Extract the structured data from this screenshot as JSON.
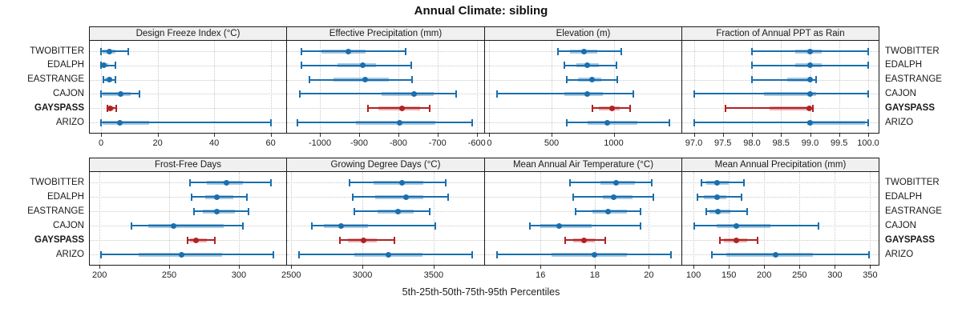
{
  "title": "Annual Climate: sibling",
  "caption": "5th-25th-50th-75th-95th Percentiles",
  "sites": [
    "TWOBITTER",
    "EDALPH",
    "EASTRANGE",
    "CAJON",
    "GAYSPASS",
    "ARIZO"
  ],
  "highlight_site": "GAYSPASS",
  "colors": {
    "series": "#1a6fae",
    "series_band": "rgba(26,111,174,0.38)",
    "highlight": "#b22222",
    "highlight_band": "rgba(178,34,34,0.35)",
    "header_bg": "#f0f0f0",
    "border": "#1a1a1a",
    "grid": "#c9c9c9",
    "text": "#1a1a1a"
  },
  "chart_data": {
    "type": "dot-whisker",
    "note": "Each row shows 5th-25th-50th-75th-95th percentiles: thin line with end caps = 5th-95th, thick translucent band = 25th-75th, dot = median (50th).",
    "percentiles": [
      5,
      25,
      50,
      75,
      95
    ],
    "row_order": [
      "TWOBITTER",
      "EDALPH",
      "EASTRANGE",
      "CAJON",
      "GAYSPASS",
      "ARIZO"
    ],
    "panels": [
      {
        "title": "Design Freeze Index (°C)",
        "grid_pos": [
          0,
          0
        ],
        "xlim": [
          -4,
          65.5
        ],
        "tick_values": [
          0,
          20,
          40,
          60
        ],
        "tick_labels": [
          "0",
          "20",
          "40",
          "60"
        ],
        "values": {
          "TWOBITTER": [
            0,
            0.5,
            3,
            5,
            9.5
          ],
          "EDALPH": [
            0,
            0.2,
            1,
            2.5,
            5
          ],
          "EASTRANGE": [
            0.8,
            1.5,
            2.8,
            4,
            5.2
          ],
          "CAJON": [
            0,
            0.5,
            7,
            10.5,
            13.5
          ],
          "GAYSPASS": [
            2.2,
            2.6,
            3.3,
            4.4,
            5.3
          ],
          "ARIZO": [
            0,
            0.5,
            6.7,
            17,
            60
          ]
        }
      },
      {
        "title": "Effective Precipitation (mm)",
        "grid_pos": [
          0,
          1
        ],
        "xlim": [
          -1084,
          -581
        ],
        "tick_values": [
          -1000,
          -900,
          -800,
          -700,
          -600
        ],
        "tick_labels": [
          "-1000",
          "-900",
          "-800",
          "-700",
          "-600"
        ],
        "values": {
          "TWOBITTER": [
            -1047,
            -996,
            -927,
            -884,
            -782
          ],
          "EDALPH": [
            -1047,
            -955,
            -890,
            -857,
            -768
          ],
          "EASTRANGE": [
            -1027,
            -965,
            -884,
            -825,
            -765
          ],
          "CAJON": [
            -1051,
            -843,
            -761,
            -710,
            -652
          ],
          "GAYSPASS": [
            -877,
            -850,
            -790,
            -745,
            -720
          ],
          "ARIZO": [
            -1057,
            -908,
            -796,
            -706,
            -612
          ]
        }
      },
      {
        "title": "Elevation (m)",
        "grid_pos": [
          0,
          2
        ],
        "xlim": [
          -35,
          1545
        ],
        "tick_values": [
          0,
          500,
          1000
        ],
        "tick_labels": [
          "0",
          "500",
          "1000"
        ],
        "values": {
          "TWOBITTER": [
            550,
            650,
            760,
            870,
            1060
          ],
          "EDALPH": [
            600,
            700,
            790,
            880,
            1020
          ],
          "EASTRANGE": [
            620,
            710,
            825,
            900,
            1030
          ],
          "CAJON": [
            60,
            600,
            790,
            910,
            1160
          ],
          "GAYSPASS": [
            830,
            880,
            985,
            1050,
            1130
          ],
          "ARIZO": [
            620,
            790,
            950,
            1190,
            1450
          ]
        }
      },
      {
        "title": "Fraction of Annual PPT as Rain",
        "grid_pos": [
          0,
          3
        ],
        "xlim": [
          96.8,
          100.18
        ],
        "tick_values": [
          97.0,
          97.5,
          98.0,
          98.5,
          99.0,
          99.5,
          100.0
        ],
        "tick_labels": [
          "97.0",
          "97.5",
          "98.0",
          "98.5",
          "99.0",
          "99.5",
          "100.0"
        ],
        "values": {
          "TWOBITTER": [
            98.0,
            98.75,
            99.0,
            99.2,
            100.0
          ],
          "EDALPH": [
            98.0,
            98.75,
            99.0,
            99.2,
            100.0
          ],
          "EASTRANGE": [
            98.0,
            98.6,
            99.0,
            99.02,
            99.1
          ],
          "CAJON": [
            97.0,
            98.2,
            99.0,
            99.1,
            100.0
          ],
          "GAYSPASS": [
            97.55,
            98.3,
            98.98,
            99.0,
            99.05
          ],
          "ARIZO": [
            97.0,
            98.95,
            99.0,
            99.95,
            100.0
          ]
        }
      },
      {
        "title": "Frost-Free Days",
        "grid_pos": [
          1,
          0
        ],
        "xlim": [
          193,
          334
        ],
        "tick_values": [
          200,
          250,
          300
        ],
        "tick_labels": [
          "200",
          "250",
          "300"
        ],
        "values": {
          "TWOBITTER": [
            265,
            277,
            291,
            303,
            323
          ],
          "EDALPH": [
            266,
            276,
            284,
            296,
            306
          ],
          "EASTRANGE": [
            268,
            274,
            284,
            297,
            307
          ],
          "CAJON": [
            223,
            235,
            253,
            289,
            303
          ],
          "GAYSPASS": [
            263,
            265,
            269,
            277,
            283
          ],
          "ARIZO": [
            201,
            228,
            259,
            288,
            325
          ]
        }
      },
      {
        "title": "Growing Degree Days (°C)",
        "grid_pos": [
          1,
          1
        ],
        "xlim": [
          2470,
          3855
        ],
        "tick_values": [
          2500,
          3000,
          3500
        ],
        "tick_labels": [
          "2500",
          "3000",
          "3500"
        ],
        "values": {
          "TWOBITTER": [
            2910,
            3080,
            3280,
            3430,
            3585
          ],
          "EDALPH": [
            2933,
            3090,
            3303,
            3427,
            3601
          ],
          "EASTRANGE": [
            2944,
            3107,
            3247,
            3360,
            3472
          ],
          "CAJON": [
            2646,
            2730,
            2848,
            3040,
            3511
          ],
          "GAYSPASS": [
            2843,
            2900,
            3006,
            3100,
            3225
          ],
          "ARIZO": [
            2556,
            2940,
            3180,
            3420,
            3770
          ]
        }
      },
      {
        "title": "Mean Annual Air Temperature (°C)",
        "grid_pos": [
          1,
          2
        ],
        "xlim": [
          13.95,
          21.2
        ],
        "tick_values": [
          16,
          18,
          20
        ],
        "tick_labels": [
          "16",
          "18",
          "20"
        ],
        "values": {
          "TWOBITTER": [
            17.1,
            18.2,
            18.8,
            19.5,
            20.1
          ],
          "EDALPH": [
            17.2,
            18.3,
            18.7,
            19.4,
            20.15
          ],
          "EASTRANGE": [
            17.3,
            17.9,
            18.5,
            19.2,
            19.7
          ],
          "CAJON": [
            15.6,
            16.0,
            16.7,
            17.9,
            19.7
          ],
          "GAYSPASS": [
            16.9,
            17.2,
            17.6,
            18.0,
            18.4
          ],
          "ARIZO": [
            14.4,
            16.4,
            18.0,
            19.2,
            20.8
          ]
        }
      },
      {
        "title": "Mean Annual Precipitation (mm)",
        "grid_pos": [
          1,
          3
        ],
        "xlim": [
          84,
          362
        ],
        "tick_values": [
          100,
          150,
          200,
          250,
          300,
          350
        ],
        "tick_labels": [
          "100",
          "150",
          "200",
          "250",
          "300",
          "350"
        ],
        "values": {
          "TWOBITTER": [
            111,
            118,
            133,
            150,
            171
          ],
          "EDALPH": [
            106,
            115,
            133,
            147,
            168
          ],
          "EASTRANGE": [
            118,
            122,
            135,
            152,
            176
          ],
          "CAJON": [
            101,
            133,
            160,
            209,
            277
          ],
          "GAYSPASS": [
            137,
            143,
            161,
            176,
            191
          ],
          "ARIZO": [
            126,
            146,
            216,
            269,
            348
          ]
        }
      }
    ]
  }
}
